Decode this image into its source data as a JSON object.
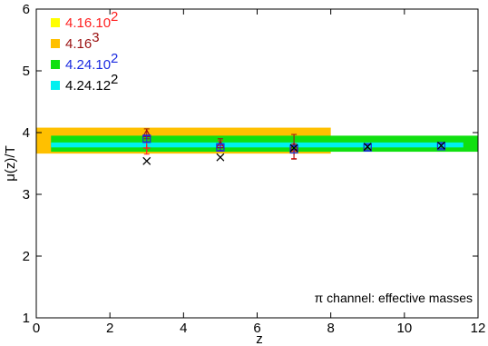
{
  "chart_data": {
    "type": "scatter",
    "title": "",
    "xlabel": "z",
    "ylabel": "μ(z)/T",
    "xlim": [
      0,
      12
    ],
    "ylim": [
      1,
      6
    ],
    "xticks": [
      "0",
      "2",
      "4",
      "6",
      "8",
      "10",
      "12"
    ],
    "yticks": [
      "1",
      "2",
      "3",
      "4",
      "5",
      "6"
    ],
    "grid": false,
    "legend_placement": "top-left",
    "annotation": "π channel: effective masses",
    "legend": [
      {
        "base": "4.16.10",
        "exp": "2",
        "swatch": "#ffff00",
        "text_color": "#ff2020"
      },
      {
        "base": "4.16",
        "exp": "3",
        "swatch": "#ffc000",
        "text_color": "#9a1010"
      },
      {
        "base": "4.24.10",
        "exp": "2",
        "swatch": "#10e010",
        "text_color": "#1a2ae0"
      },
      {
        "base": "4.24.12",
        "exp": "2",
        "swatch": "#00f0f0",
        "text_color": "#000000"
      }
    ],
    "bands": [
      {
        "series": "4.16.10^2",
        "x": [
          0,
          8
        ],
        "y": [
          3.72,
          3.95
        ],
        "color": "#ffff00"
      },
      {
        "series": "4.16^3",
        "x": [
          0,
          8
        ],
        "y": [
          3.66,
          4.08
        ],
        "color": "#ffc000"
      },
      {
        "series": "4.24.10^2",
        "x": [
          0.4,
          12
        ],
        "y": [
          3.69,
          3.95
        ],
        "color": "#10e010"
      },
      {
        "series": "4.24.12^2",
        "x": [
          0.4,
          11.6
        ],
        "y": [
          3.76,
          3.84
        ],
        "color": "#00f0f0"
      }
    ],
    "series": [
      {
        "name": "4.16.10^2",
        "marker": "plus",
        "color": "#ff2020",
        "points": [
          {
            "x": 3,
            "y": 3.75,
            "err": 0.1
          },
          {
            "x": 5,
            "y": 3.79,
            "err": 0.08
          },
          {
            "x": 7,
            "y": 3.7,
            "err": 0.12
          }
        ]
      },
      {
        "name": "4.16^3",
        "marker": "triangle",
        "color": "#9a1010",
        "points": [
          {
            "x": 3,
            "y": 3.98,
            "err": 0.08
          },
          {
            "x": 5,
            "y": 3.8,
            "err": 0.1
          },
          {
            "x": 7,
            "y": 3.77,
            "err": 0.2
          }
        ]
      },
      {
        "name": "4.24.10^2",
        "marker": "square",
        "color": "#1a2ae0",
        "points": [
          {
            "x": 3,
            "y": 3.9,
            "err": 0.05
          },
          {
            "x": 5,
            "y": 3.76,
            "err": 0.05
          },
          {
            "x": 7,
            "y": 3.73,
            "err": 0.06
          },
          {
            "x": 9,
            "y": 3.76,
            "err": 0.05
          },
          {
            "x": 11,
            "y": 3.78,
            "err": 0.04
          }
        ]
      },
      {
        "name": "4.24.12^2",
        "marker": "x",
        "color": "#000000",
        "points": [
          {
            "x": 3,
            "y": 3.54,
            "err": 0
          },
          {
            "x": 5,
            "y": 3.6,
            "err": 0
          },
          {
            "x": 7,
            "y": 3.75,
            "err": 0
          },
          {
            "x": 9,
            "y": 3.77,
            "err": 0
          },
          {
            "x": 11,
            "y": 3.79,
            "err": 0
          }
        ]
      }
    ]
  }
}
